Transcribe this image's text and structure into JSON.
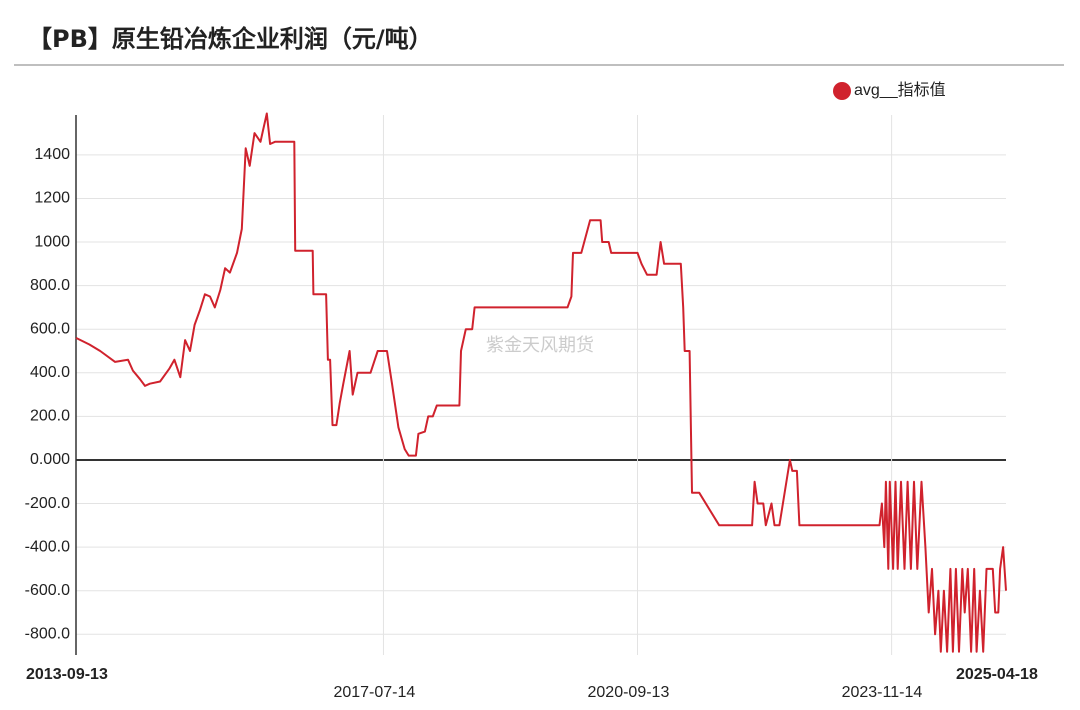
{
  "chart_data": {
    "type": "line",
    "title": "【PB】原生铅冶炼企业利润（元/吨）",
    "watermark": "紫金天风期货",
    "legend_position": "top-right",
    "grid": true,
    "xlim": [
      "2013-09-13",
      "2025-04-18"
    ],
    "xticks": [
      "2013-09-13",
      "2017-07-14",
      "2020-09-13",
      "2023-11-14",
      "2025-04-18"
    ],
    "ylim": [
      -895,
      1583
    ],
    "yticks": [
      1400,
      1200,
      1000,
      {
        "value": 800,
        "label": "800.0"
      },
      {
        "value": 600,
        "label": "600.0"
      },
      {
        "value": 400,
        "label": "400.0"
      },
      {
        "value": 200,
        "label": "200.0"
      },
      {
        "value": 0,
        "label": "0.000"
      },
      {
        "value": -200,
        "label": "-200.0"
      },
      {
        "value": -400,
        "label": "-400.0"
      },
      {
        "value": -600,
        "label": "-600.0"
      },
      {
        "value": -800,
        "label": "-800.0"
      }
    ],
    "x": [
      "2013-09-13",
      "2013-11-13",
      "2014-01-01",
      "2014-03-10",
      "2014-05-08",
      "2014-05-30",
      "2014-07-02",
      "2014-07-24",
      "2014-08-15",
      "2014-10-01",
      "2014-11-13",
      "2014-12-05",
      "2015-01-01",
      "2015-01-23",
      "2015-02-14",
      "2015-03-07",
      "2015-04-01",
      "2015-04-23",
      "2015-05-16",
      "2015-06-07",
      "2015-07-02",
      "2015-07-24",
      "2015-08-15",
      "2015-09-16",
      "2015-10-08",
      "2015-10-26",
      "2015-11-13",
      "2015-12-05",
      "2016-01-01",
      "2016-01-12",
      "2016-01-30",
      "2016-02-14",
      "2016-03-07",
      "2016-06-03",
      "2016-06-07",
      "2016-08-26",
      "2016-08-29",
      "2016-10-26",
      "2016-11-03",
      "2016-11-13",
      "2016-11-24",
      "2016-12-12",
      "2016-12-27",
      "2017-01-12",
      "2017-02-10",
      "2017-02-24",
      "2017-03-18",
      "2017-05-16",
      "2017-06-18",
      "2017-07-30",
      "2017-08-22",
      "2017-09-20",
      "2017-10-19",
      "2017-11-06",
      "2017-12-09",
      "2017-12-20",
      "2018-01-19",
      "2018-02-03",
      "2018-02-24",
      "2018-03-14",
      "2018-06-25",
      "2018-07-02",
      "2018-07-24",
      "2018-08-22",
      "2018-09-02",
      "2019-10-30",
      "2019-11-17",
      "2019-11-24",
      "2020-01-01",
      "2020-02-10",
      "2020-03-29",
      "2020-04-05",
      "2020-05-05",
      "2020-05-16",
      "2020-09-13",
      "2020-10-01",
      "2020-10-26",
      "2020-12-09",
      "2020-12-27",
      "2021-01-12",
      "2021-03-29",
      "2021-04-09",
      "2021-04-16",
      "2021-05-08",
      "2021-05-19",
      "2021-06-21",
      "2021-09-20",
      "2022-02-17",
      "2022-02-28",
      "2022-03-14",
      "2022-04-09",
      "2022-04-20",
      "2022-05-16",
      "2022-05-30",
      "2022-06-21",
      "2022-08-08",
      "2022-08-19",
      "2022-09-09",
      "2022-09-20",
      "2023-09-20",
      "2023-10-01",
      "2023-10-12",
      "2023-10-19",
      "2023-10-30",
      "2023-11-06",
      "2023-11-21",
      "2023-12-02",
      "2023-12-12",
      "2023-12-27",
      "2024-01-12",
      "2024-01-26",
      "2024-02-10",
      "2024-02-24",
      "2024-03-10",
      "2024-03-29",
      "2024-04-16",
      "2024-05-01",
      "2024-05-16",
      "2024-05-30",
      "2024-06-14",
      "2024-06-25",
      "2024-07-09",
      "2024-07-24",
      "2024-08-08",
      "2024-08-19",
      "2024-09-02",
      "2024-09-16",
      "2024-10-01",
      "2024-10-12",
      "2024-10-26",
      "2024-11-10",
      "2024-11-24",
      "2024-12-05",
      "2024-12-20",
      "2025-01-04",
      "2025-01-19",
      "2025-02-17",
      "2025-02-28",
      "2025-03-14",
      "2025-03-22",
      "2025-04-05",
      "2025-04-18"
    ],
    "series": [
      {
        "name": "avg__指标值",
        "color": "#d0222d",
        "values": [
          560,
          530,
          500,
          450,
          460,
          410,
          370,
          340,
          350,
          360,
          420,
          460,
          380,
          550,
          500,
          620,
          690,
          760,
          750,
          700,
          780,
          880,
          860,
          950,
          1060,
          1430,
          1350,
          1500,
          1460,
          1510,
          1590,
          1450,
          1460,
          1460,
          960,
          960,
          760,
          760,
          460,
          460,
          160,
          160,
          260,
          350,
          500,
          300,
          400,
          400,
          500,
          500,
          350,
          150,
          50,
          20,
          20,
          120,
          130,
          200,
          200,
          250,
          250,
          500,
          600,
          600,
          700,
          700,
          750,
          950,
          950,
          1100,
          1100,
          1000,
          1000,
          950,
          950,
          900,
          850,
          850,
          1000,
          900,
          900,
          700,
          500,
          500,
          -150,
          -150,
          -300,
          -300,
          -100,
          -200,
          -200,
          -300,
          -200,
          -300,
          -300,
          0,
          -50,
          -50,
          -300,
          -300,
          -200,
          -400,
          -100,
          -500,
          -100,
          -500,
          -100,
          -500,
          -100,
          -500,
          -100,
          -500,
          -100,
          -500,
          -100,
          -400,
          -700,
          -500,
          -800,
          -600,
          -880,
          -600,
          -880,
          -500,
          -880,
          -500,
          -880,
          -500,
          -700,
          -500,
          -880,
          -500,
          -880,
          -600,
          -880,
          -500,
          -500,
          -700,
          -700,
          -500,
          -400,
          -600
        ]
      }
    ]
  }
}
